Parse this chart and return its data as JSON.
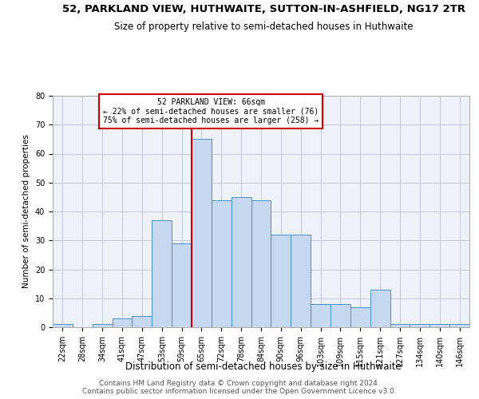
{
  "title": "52, PARKLAND VIEW, HUTHWAITE, SUTTON-IN-ASHFIELD, NG17 2TR",
  "subtitle": "Size of property relative to semi-detached houses in Huthwaite",
  "xlabel": "Distribution of semi-detached houses by size in Huthwaite",
  "ylabel": "Number of semi-detached properties",
  "footer_line1": "Contains HM Land Registry data © Crown copyright and database right 2024.",
  "footer_line2": "Contains public sector information licensed under the Open Government Licence v3.0.",
  "categories": [
    "22sqm",
    "28sqm",
    "34sqm",
    "41sqm",
    "47sqm",
    "53sqm",
    "59sqm",
    "65sqm",
    "72sqm",
    "78sqm",
    "84sqm",
    "90sqm",
    "96sqm",
    "103sqm",
    "109sqm",
    "115sqm",
    "121sqm",
    "127sqm",
    "134sqm",
    "140sqm",
    "146sqm"
  ],
  "values": [
    1,
    0,
    1,
    3,
    4,
    37,
    29,
    65,
    44,
    45,
    44,
    32,
    32,
    8,
    8,
    7,
    13,
    1,
    1,
    1,
    1
  ],
  "bar_color": "#c5d8f0",
  "bar_edge_color": "#4a90c4",
  "grid_color": "#c0c8d8",
  "background_color": "#eef2f8",
  "property_label": "52 PARKLAND VIEW: 66sqm",
  "pct_smaller": 22,
  "count_smaller": 76,
  "pct_larger": 75,
  "count_larger": 258,
  "annotation_box_color": "#cc0000",
  "vline_color": "#cc0000",
  "vline_x_index": 7.0,
  "ylim": [
    0,
    80
  ],
  "yticks": [
    0,
    10,
    20,
    30,
    40,
    50,
    60,
    70,
    80
  ],
  "title_fontsize": 9.5,
  "subtitle_fontsize": 8.5,
  "xlabel_fontsize": 8.5,
  "ylabel_fontsize": 7.5,
  "tick_fontsize": 7,
  "annotation_fontsize": 7,
  "footer_fontsize": 6.5
}
